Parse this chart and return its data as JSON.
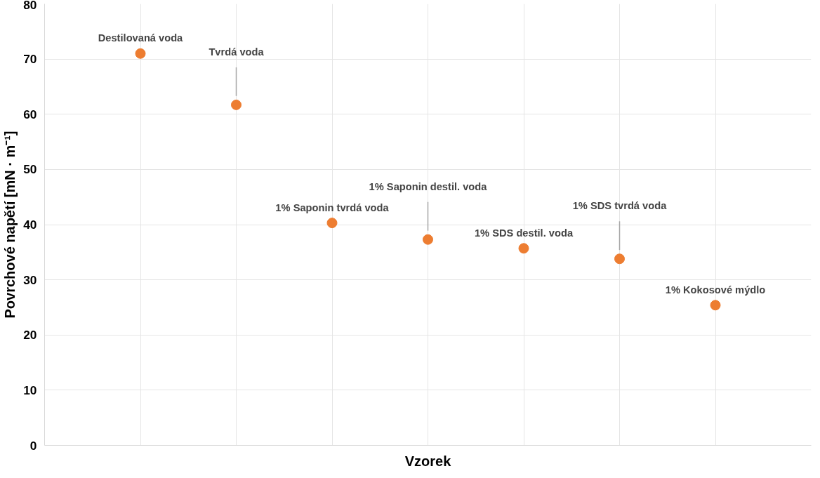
{
  "chart_data": {
    "type": "scatter",
    "xlabel": "Vzorek",
    "ylabel": "Povrchové napětí [mN · m⁻¹]",
    "categories": [
      null,
      null,
      null,
      null,
      null,
      null,
      null
    ],
    "series": [
      {
        "color": "#ed7d31",
        "values": [
          71,
          61.7,
          40.3,
          37.3,
          35.7,
          33.8,
          25.4
        ]
      }
    ],
    "annotations": [
      "Destilovaná voda",
      "Tvrdá voda",
      "1% Saponin tvrdá voda",
      "1% Saponin destil. voda",
      "1% SDS destil. voda",
      "1% SDS tvrdá voda",
      "1% Kokosové mýdlo"
    ],
    "ylim": [
      0,
      80
    ],
    "yticks": [
      0,
      10,
      20,
      30,
      40,
      50,
      60,
      70,
      80
    ],
    "grid": true,
    "marker": "circle"
  }
}
